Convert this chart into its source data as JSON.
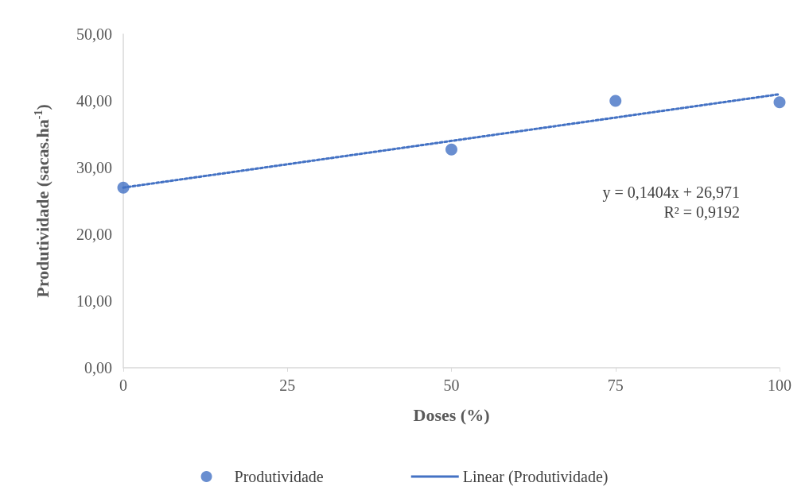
{
  "chart_data": {
    "type": "scatter",
    "xlabel": "Doses (%)",
    "ylabel": "Produtividade (sacas.ha$^{-1}$)",
    "x": [
      0,
      50,
      75,
      100
    ],
    "series": [
      {
        "name": "Produtividade",
        "color": "#4472c4",
        "marker": "circle",
        "values": [
          27.0,
          32.7,
          40.0,
          39.8
        ]
      },
      {
        "name": "Linear (Produtividade)",
        "type": "line",
        "color": "#4472c4",
        "line_style": "dotted",
        "marker": "none",
        "x": [
          0,
          100
        ],
        "values": [
          27.0,
          41.0
        ]
      }
    ],
    "xlim": [
      0,
      100
    ],
    "xticks": [
      0,
      25,
      50,
      75,
      100
    ],
    "ylim": [
      0,
      50
    ],
    "yticks": [
      {
        "value": 0,
        "label": "0,00"
      },
      {
        "value": 10,
        "label": "10,00"
      },
      {
        "value": 20,
        "label": "20,00"
      },
      {
        "value": 30,
        "label": "30,00"
      },
      {
        "value": 40,
        "label": "40,00"
      },
      {
        "value": 50,
        "label": "50,00"
      }
    ],
    "grid": false,
    "legend": "bottom",
    "annotations": [
      "y = 0,1404x + 26,971",
      "R² = 0,9192"
    ]
  }
}
